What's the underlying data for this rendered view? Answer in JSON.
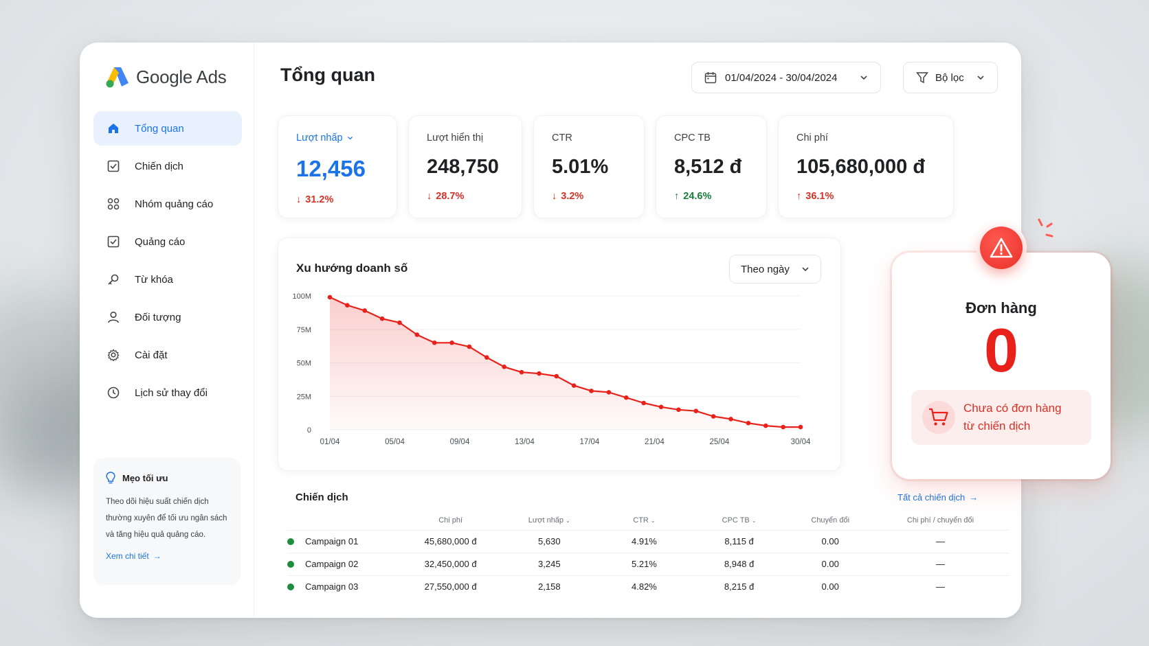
{
  "app": {
    "brand": "Google Ads"
  },
  "sidebar": {
    "items": [
      {
        "label": "Tổng quan",
        "icon": "home-icon",
        "active": true
      },
      {
        "label": "Chiến dịch",
        "icon": "checkbox-icon"
      },
      {
        "label": "Nhóm quảng cáo",
        "icon": "grid-icon"
      },
      {
        "label": "Quảng cáo",
        "icon": "checkbox-icon"
      },
      {
        "label": "Từ khóa",
        "icon": "key-icon"
      },
      {
        "label": "Đối tượng",
        "icon": "person-icon"
      },
      {
        "label": "Cài đặt",
        "icon": "gear-icon"
      },
      {
        "label": "Lịch sử thay đổi",
        "icon": "history-icon"
      }
    ],
    "tip": {
      "title": "Mẹo tối ưu",
      "body": "Theo dõi hiệu suất chiến dịch thường xuyên để tối ưu ngân sách và tăng hiệu quả quảng cáo.",
      "link": "Xem chi tiết"
    }
  },
  "header": {
    "title": "Tổng quan",
    "date_range": "01/04/2024 - 30/04/2024",
    "filter_label": "Bộ lọc"
  },
  "kpis": [
    {
      "label": "Lượt nhấp",
      "value": "12,456",
      "delta": "31.2%",
      "direction": "down",
      "selectable": true
    },
    {
      "label": "Lượt hiển thị",
      "value": "248,750",
      "delta": "28.7%",
      "direction": "down"
    },
    {
      "label": "CTR",
      "value": "5.01%",
      "delta": "3.2%",
      "direction": "down"
    },
    {
      "label": "CPC TB",
      "value": "8,512 đ",
      "delta": "24.6%",
      "direction": "up"
    },
    {
      "label": "Chi phí",
      "value": "105,680,000 đ",
      "delta": "36.1%",
      "direction": "up"
    }
  ],
  "chart": {
    "title": "Xu hướng doanh số",
    "granularity": "Theo ngày"
  },
  "chart_data": {
    "type": "area",
    "x_tick_labels": [
      "01/04",
      "05/04",
      "09/04",
      "13/04",
      "17/04",
      "21/04",
      "25/04",
      "30/04"
    ],
    "y_tick_labels": [
      "0",
      "25M",
      "50M",
      "75M",
      "100M"
    ],
    "ylim": [
      0,
      100
    ],
    "y_unit": "M",
    "series": [
      {
        "color": "#e8221b",
        "x": [
          1,
          2,
          3,
          4,
          5,
          6,
          7,
          8,
          9,
          10,
          11,
          12,
          13,
          14,
          15,
          16,
          17,
          18,
          19,
          20,
          21,
          22,
          23,
          24,
          25,
          26,
          27,
          28
        ],
        "values": [
          99,
          93,
          89,
          83,
          80,
          71,
          65,
          65,
          62,
          54,
          47,
          43,
          42,
          40,
          33,
          29,
          28,
          24,
          20,
          17,
          15,
          14,
          10,
          8,
          5,
          3,
          2,
          2
        ]
      }
    ],
    "x_domain": [
      1,
      30
    ],
    "x_tick_positions": [
      1,
      5,
      9,
      13,
      17,
      21,
      25,
      30
    ],
    "grid": true
  },
  "orders": {
    "title": "Đơn hàng",
    "value": "0",
    "note_line1": "Chưa có đơn hàng",
    "note_line2": "từ chiến dịch"
  },
  "campaigns": {
    "title": "Chiến dịch",
    "link": "Tất cả chiến dịch",
    "columns": [
      "",
      "Chi phí",
      "Lượt nhấp",
      "CTR",
      "CPC TB",
      "Chuyển đổi",
      "Chi phí / chuyển đổi"
    ],
    "rows": [
      [
        "Campaign 01",
        "45,680,000 đ",
        "5,630",
        "4.91%",
        "8,115 đ",
        "0.00",
        "—"
      ],
      [
        "Campaign 02",
        "32,450,000 đ",
        "3,245",
        "5.21%",
        "8,948 đ",
        "0.00",
        "—"
      ],
      [
        "Campaign 03",
        "27,550,000 đ",
        "2,158",
        "4.82%",
        "8,215 đ",
        "0.00",
        "—"
      ]
    ],
    "status_color": "#1e8e3e"
  },
  "colors": {
    "accent": "#1a73e8",
    "negative": "#d93025",
    "positive": "#188038",
    "alert": "#e8221b"
  }
}
